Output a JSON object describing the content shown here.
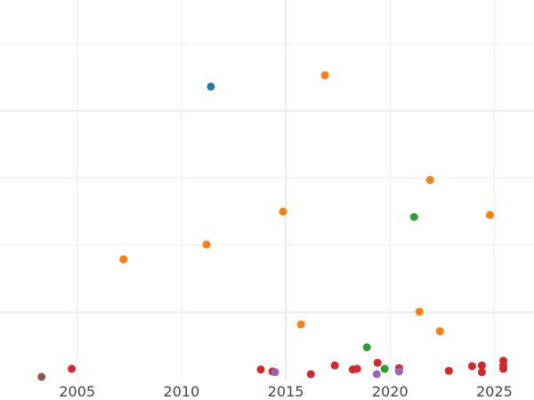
{
  "chart_data": {
    "type": "scatter",
    "title": "",
    "xlabel": "",
    "ylabel": "",
    "xlim": [
      2001.3,
      2026.9
    ],
    "ylim": [
      0,
      5.65
    ],
    "grid": true,
    "x_ticks": [
      2005,
      2010,
      2015,
      2020,
      2025
    ],
    "x_tick_labels": [
      "2005",
      "2010",
      "2015",
      "2020",
      "2025"
    ],
    "y_gridlines": [
      1,
      2,
      3,
      4,
      5
    ],
    "series": [
      {
        "color": "#1f77b4",
        "points": [
          [
            2011.41,
            4.36
          ]
        ]
      },
      {
        "color": "#ff7f0e",
        "points": [
          [
            2016.88,
            4.53
          ],
          [
            2021.92,
            2.97
          ],
          [
            2014.87,
            2.5
          ],
          [
            2024.79,
            2.45
          ],
          [
            2011.2,
            2.01
          ],
          [
            2007.22,
            1.79
          ],
          [
            2021.41,
            1.01
          ],
          [
            2015.73,
            0.82
          ],
          [
            2022.39,
            0.72
          ]
        ]
      },
      {
        "color": "#2ca02c",
        "points": [
          [
            2021.15,
            2.42
          ],
          [
            2018.89,
            0.48
          ],
          [
            2019.74,
            0.16
          ]
        ]
      },
      {
        "color": "#d62728",
        "points": [
          [
            2004.74,
            0.16
          ],
          [
            2013.8,
            0.15
          ],
          [
            2014.36,
            0.12
          ],
          [
            2016.2,
            0.08
          ],
          [
            2017.35,
            0.21
          ],
          [
            2018.21,
            0.15
          ],
          [
            2018.42,
            0.16
          ],
          [
            2019.4,
            0.25
          ],
          [
            2020.43,
            0.17
          ],
          [
            2022.82,
            0.13
          ],
          [
            2023.93,
            0.2
          ],
          [
            2024.4,
            0.21
          ],
          [
            2024.4,
            0.11
          ],
          [
            2025.43,
            0.28
          ],
          [
            2025.43,
            0.21
          ],
          [
            2025.43,
            0.16
          ]
        ]
      },
      {
        "color": "#9467bd",
        "points": [
          [
            2014.49,
            0.11
          ],
          [
            2019.36,
            0.08
          ],
          [
            2020.43,
            0.12
          ]
        ]
      },
      {
        "color": "#8c564b",
        "points": [
          [
            2003.29,
            0.04
          ]
        ]
      }
    ]
  }
}
